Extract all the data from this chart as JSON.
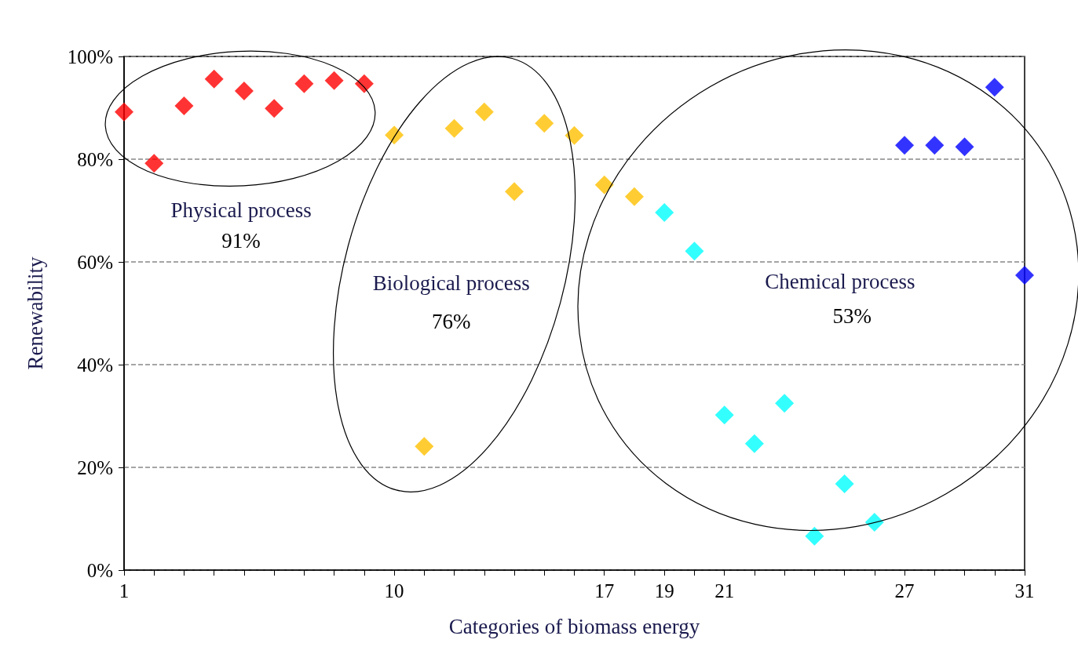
{
  "chart_data": {
    "type": "scatter",
    "xlabel": "Categories of biomass energy",
    "ylabel": "Renewability",
    "annotations": [
      "Physical process",
      "91%",
      "Biological process",
      "76%",
      "Chemical process",
      "53%"
    ],
    "xlim": [
      1,
      31
    ],
    "xticks": [
      1,
      {
        "value": 2,
        "label": null
      },
      {
        "value": 3,
        "label": null
      },
      {
        "value": 4,
        "label": null
      },
      {
        "value": 5,
        "label": null
      },
      {
        "value": 6,
        "label": null
      },
      {
        "value": 7,
        "label": null
      },
      {
        "value": 8,
        "label": null
      },
      {
        "value": 9,
        "label": null
      },
      10,
      {
        "value": 11,
        "label": null
      },
      {
        "value": 12,
        "label": null
      },
      {
        "value": 13,
        "label": null
      },
      {
        "value": 14,
        "label": null
      },
      {
        "value": 15,
        "label": null
      },
      {
        "value": 16,
        "label": null
      },
      17,
      {
        "value": 18,
        "label": null
      },
      19,
      {
        "value": 20,
        "label": null
      },
      21,
      {
        "value": 22,
        "label": null
      },
      {
        "value": 23,
        "label": null
      },
      {
        "value": 24,
        "label": null
      },
      {
        "value": 25,
        "label": null
      },
      {
        "value": 26,
        "label": null
      },
      27,
      {
        "value": 28,
        "label": null
      },
      {
        "value": 29,
        "label": null
      },
      {
        "value": 30,
        "label": null
      },
      31
    ],
    "ylim": [
      0,
      100
    ],
    "yticks": [
      {
        "value": 0,
        "label": "0%"
      },
      {
        "value": 20,
        "label": "20%"
      },
      {
        "value": 40,
        "label": "40%"
      },
      {
        "value": 60,
        "label": "60%"
      },
      {
        "value": 80,
        "label": "80%"
      },
      {
        "value": 100,
        "label": "100%"
      }
    ],
    "grid": "y",
    "marker": "diamond",
    "series": [
      {
        "color": "#ff0000",
        "x": [
          1,
          2,
          3,
          4,
          5,
          6,
          8
        ],
        "values": [
          89.2,
          79.2,
          90.4,
          95.6,
          93.3,
          89.9,
          95.3
        ]
      },
      {
        "color": "#ff0000",
        "x": [
          7,
          9
        ],
        "values": [
          94.7,
          94.7
        ]
      },
      {
        "color": "#ffc000",
        "x": [
          11,
          12,
          13,
          14,
          15,
          16
        ],
        "values": [
          24.1,
          86.0,
          89.2,
          73.7,
          87.0,
          84.6
        ]
      },
      {
        "color": "#ffc000",
        "x": [
          10,
          17,
          18
        ],
        "values": [
          84.7,
          75.0,
          72.7
        ]
      },
      {
        "color": "#00ffff",
        "x": [
          19,
          20,
          21,
          22
        ],
        "values": [
          69.6,
          62.1,
          30.2,
          24.6
        ]
      },
      {
        "color": "#00ffff",
        "x": [
          23,
          24,
          25,
          26
        ],
        "values": [
          32.5,
          6.6,
          16.8,
          9.3
        ]
      },
      {
        "color": "#0000ff",
        "x": [
          27,
          28,
          29
        ],
        "values": [
          82.7,
          82.7,
          82.4
        ]
      },
      {
        "color": "#0000ff",
        "x": [
          30,
          31
        ],
        "values": [
          94.0,
          57.4
        ]
      }
    ]
  }
}
